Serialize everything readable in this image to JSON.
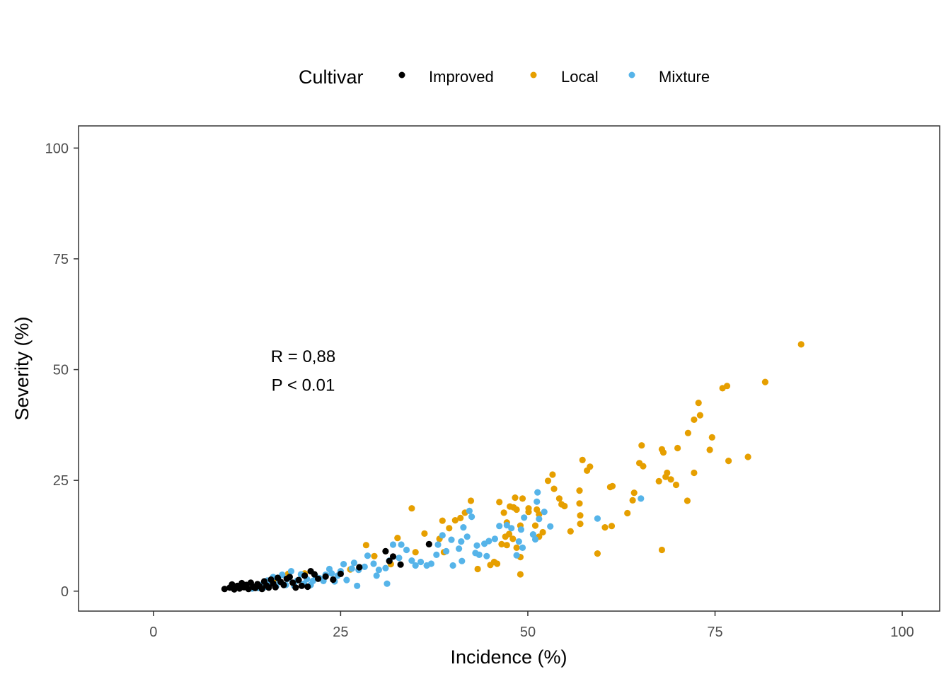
{
  "chart_data": {
    "type": "scatter",
    "xlabel": "Incidence (%)",
    "ylabel": "Severity (%)",
    "xlim": [
      -10,
      105
    ],
    "ylim": [
      -4.5,
      105
    ],
    "xticks": [
      0,
      25,
      50,
      75,
      100
    ],
    "yticks": [
      0,
      25,
      50,
      75,
      100
    ],
    "grid": false,
    "legend": {
      "title": "Cultivar",
      "position": "top"
    },
    "annotations": [
      {
        "text": "R = 0,88",
        "x": 20,
        "y": 53
      },
      {
        "text": "P < 0.01",
        "x": 20,
        "y": 46.5
      }
    ],
    "series": [
      {
        "name": "Improved",
        "color": "#000000",
        "points": [
          [
            9.5,
            0.5
          ],
          [
            10.2,
            0.8
          ],
          [
            10.5,
            1.5
          ],
          [
            10.8,
            0.4
          ],
          [
            11.2,
            1.2
          ],
          [
            11.5,
            0.6
          ],
          [
            11.8,
            1.8
          ],
          [
            12.1,
            0.9
          ],
          [
            12.4,
            1.4
          ],
          [
            12.7,
            0.5
          ],
          [
            13.0,
            1.9
          ],
          [
            13.3,
            1.0
          ],
          [
            13.6,
            0.7
          ],
          [
            13.9,
            1.6
          ],
          [
            14.2,
            1.1
          ],
          [
            14.5,
            0.5
          ],
          [
            14.8,
            2.2
          ],
          [
            15.1,
            1.3
          ],
          [
            15.4,
            0.8
          ],
          [
            15.7,
            2.6
          ],
          [
            16.0,
            1.7
          ],
          [
            16.3,
            0.9
          ],
          [
            16.6,
            3.0
          ],
          [
            17.0,
            2.1
          ],
          [
            17.4,
            1.4
          ],
          [
            17.8,
            2.8
          ],
          [
            18.2,
            3.2
          ],
          [
            18.6,
            1.9
          ],
          [
            19.0,
            0.8
          ],
          [
            19.4,
            2.5
          ],
          [
            19.8,
            1.2
          ],
          [
            20.2,
            3.5
          ],
          [
            20.6,
            1.0
          ],
          [
            21.0,
            4.5
          ],
          [
            21.5,
            3.8
          ],
          [
            22.0,
            2.8
          ],
          [
            23.0,
            3.3
          ],
          [
            24.0,
            2.6
          ],
          [
            25.0,
            3.9
          ],
          [
            27.5,
            5.4
          ],
          [
            31.0,
            9.0
          ],
          [
            31.5,
            6.8
          ],
          [
            32.0,
            7.8
          ],
          [
            33.0,
            6.0
          ],
          [
            36.8,
            10.6
          ]
        ]
      },
      {
        "name": "Local",
        "color": "#E69F00",
        "points": [
          [
            86.5,
            55.7
          ],
          [
            81.7,
            47.2
          ],
          [
            76.6,
            46.3
          ],
          [
            76.0,
            45.8
          ],
          [
            72.8,
            42.5
          ],
          [
            73.0,
            39.7
          ],
          [
            72.2,
            38.7
          ],
          [
            71.4,
            35.7
          ],
          [
            74.6,
            34.7
          ],
          [
            70.0,
            32.3
          ],
          [
            67.9,
            32.0
          ],
          [
            74.3,
            31.9
          ],
          [
            68.1,
            31.3
          ],
          [
            65.2,
            32.9
          ],
          [
            64.9,
            28.9
          ],
          [
            65.4,
            28.2
          ],
          [
            76.8,
            29.4
          ],
          [
            79.4,
            30.3
          ],
          [
            72.2,
            26.7
          ],
          [
            68.6,
            26.7
          ],
          [
            68.4,
            25.8
          ],
          [
            67.5,
            24.8
          ],
          [
            69.1,
            25.2
          ],
          [
            69.8,
            24.0
          ],
          [
            71.3,
            20.4
          ],
          [
            67.9,
            9.3
          ],
          [
            64.2,
            22.2
          ],
          [
            64.0,
            20.5
          ],
          [
            63.3,
            17.6
          ],
          [
            61.3,
            23.7
          ],
          [
            61.0,
            23.5
          ],
          [
            61.2,
            14.7
          ],
          [
            60.3,
            14.4
          ],
          [
            59.3,
            8.5
          ],
          [
            58.3,
            28.1
          ],
          [
            57.9,
            27.2
          ],
          [
            57.3,
            29.6
          ],
          [
            56.9,
            22.7
          ],
          [
            56.9,
            19.8
          ],
          [
            57.0,
            17.1
          ],
          [
            57.0,
            15.2
          ],
          [
            55.7,
            13.5
          ],
          [
            54.2,
            20.9
          ],
          [
            54.5,
            19.6
          ],
          [
            54.9,
            19.2
          ],
          [
            53.3,
            26.3
          ],
          [
            52.7,
            24.9
          ],
          [
            53.5,
            23.1
          ],
          [
            51.2,
            18.4
          ],
          [
            51.5,
            17.3
          ],
          [
            51.0,
            14.8
          ],
          [
            51.5,
            12.3
          ],
          [
            52.0,
            13.3
          ],
          [
            50.1,
            18.7
          ],
          [
            50.1,
            17.9
          ],
          [
            49.3,
            20.9
          ],
          [
            48.3,
            21.1
          ],
          [
            47.6,
            19.1
          ],
          [
            48.1,
            18.9
          ],
          [
            48.5,
            18.4
          ],
          [
            49.0,
            14.8
          ],
          [
            47.2,
            15.5
          ],
          [
            47.0,
            12.3
          ],
          [
            47.2,
            10.4
          ],
          [
            47.5,
            12.9
          ],
          [
            48.0,
            11.8
          ],
          [
            48.5,
            9.8
          ],
          [
            49.0,
            7.7
          ],
          [
            49.0,
            3.8
          ],
          [
            46.2,
            20.1
          ],
          [
            46.8,
            17.7
          ],
          [
            45.9,
            6.2
          ],
          [
            45.5,
            6.6
          ],
          [
            45.0,
            5.9
          ],
          [
            46.5,
            10.6
          ],
          [
            43.3,
            5.0
          ],
          [
            42.4,
            20.4
          ],
          [
            41.6,
            17.7
          ],
          [
            41.0,
            16.5
          ],
          [
            40.3,
            16.0
          ],
          [
            39.5,
            14.2
          ],
          [
            38.6,
            15.9
          ],
          [
            38.2,
            11.8
          ],
          [
            38.8,
            8.8
          ],
          [
            36.2,
            13.0
          ],
          [
            34.5,
            18.7
          ],
          [
            35.0,
            8.8
          ],
          [
            32.6,
            12.0
          ],
          [
            31.7,
            6.1
          ],
          [
            28.4,
            10.4
          ],
          [
            29.5,
            7.9
          ],
          [
            26.3,
            4.9
          ],
          [
            20.2,
            4.0
          ],
          [
            16.2,
            2.6
          ],
          [
            18.0,
            3.9
          ]
        ]
      },
      {
        "name": "Mixture",
        "color": "#56B4E9",
        "points": [
          [
            65.1,
            20.9
          ],
          [
            59.3,
            16.4
          ],
          [
            53.0,
            14.6
          ],
          [
            52.2,
            17.9
          ],
          [
            51.3,
            22.3
          ],
          [
            51.2,
            20.2
          ],
          [
            51.5,
            16.3
          ],
          [
            50.7,
            12.8
          ],
          [
            51.0,
            11.7
          ],
          [
            49.5,
            16.6
          ],
          [
            49.1,
            13.9
          ],
          [
            49.3,
            9.8
          ],
          [
            48.8,
            11.2
          ],
          [
            48.5,
            8.1
          ],
          [
            47.8,
            14.2
          ],
          [
            47.2,
            14.9
          ],
          [
            46.2,
            14.7
          ],
          [
            45.6,
            11.8
          ],
          [
            44.8,
            11.3
          ],
          [
            44.2,
            10.7
          ],
          [
            43.2,
            10.3
          ],
          [
            44.5,
            7.9
          ],
          [
            43.5,
            8.2
          ],
          [
            43.0,
            8.6
          ],
          [
            42.5,
            16.8
          ],
          [
            42.2,
            18.1
          ],
          [
            41.4,
            14.4
          ],
          [
            41.9,
            12.3
          ],
          [
            41.1,
            11.2
          ],
          [
            40.8,
            9.6
          ],
          [
            41.2,
            6.8
          ],
          [
            40.0,
            5.8
          ],
          [
            39.8,
            11.6
          ],
          [
            39.1,
            9.0
          ],
          [
            38.6,
            12.6
          ],
          [
            38.0,
            10.5
          ],
          [
            37.8,
            8.2
          ],
          [
            37.1,
            6.2
          ],
          [
            36.5,
            5.8
          ],
          [
            35.7,
            6.6
          ],
          [
            35.0,
            5.8
          ],
          [
            34.5,
            6.9
          ],
          [
            33.8,
            9.3
          ],
          [
            33.1,
            10.5
          ],
          [
            32.8,
            7.5
          ],
          [
            32.0,
            10.5
          ],
          [
            31.5,
            6.9
          ],
          [
            31.0,
            5.2
          ],
          [
            31.2,
            1.7
          ],
          [
            30.1,
            4.8
          ],
          [
            29.4,
            6.2
          ],
          [
            29.8,
            3.5
          ],
          [
            28.6,
            8.0
          ],
          [
            28.2,
            5.5
          ],
          [
            27.4,
            4.8
          ],
          [
            26.8,
            6.4
          ],
          [
            26.5,
            5.1
          ],
          [
            25.4,
            6.1
          ],
          [
            25.0,
            4.5
          ],
          [
            24.6,
            3.5
          ],
          [
            24.2,
            2.2
          ],
          [
            23.8,
            4.0
          ],
          [
            23.5,
            5.0
          ],
          [
            23.0,
            3.7
          ],
          [
            22.7,
            2.3
          ],
          [
            22.2,
            2.9
          ],
          [
            21.6,
            3.5
          ],
          [
            21.3,
            2.3
          ],
          [
            21.0,
            1.4
          ],
          [
            20.5,
            2.7
          ],
          [
            20.1,
            1.7
          ],
          [
            19.7,
            3.8
          ],
          [
            19.2,
            2.4
          ],
          [
            18.8,
            1.2
          ],
          [
            18.4,
            4.5
          ],
          [
            18.0,
            2.8
          ],
          [
            17.7,
            1.4
          ],
          [
            17.2,
            3.7
          ],
          [
            16.8,
            2.3
          ],
          [
            16.4,
            1.1
          ],
          [
            16.0,
            3.2
          ],
          [
            15.6,
            1.8
          ],
          [
            15.2,
            2.4
          ],
          [
            14.8,
            0.9
          ],
          [
            14.4,
            1.4
          ],
          [
            14.0,
            0.7
          ],
          [
            13.6,
            1.0
          ],
          [
            13.2,
            0.6
          ],
          [
            27.2,
            1.2
          ],
          [
            25.8,
            2.5
          ]
        ]
      }
    ]
  }
}
